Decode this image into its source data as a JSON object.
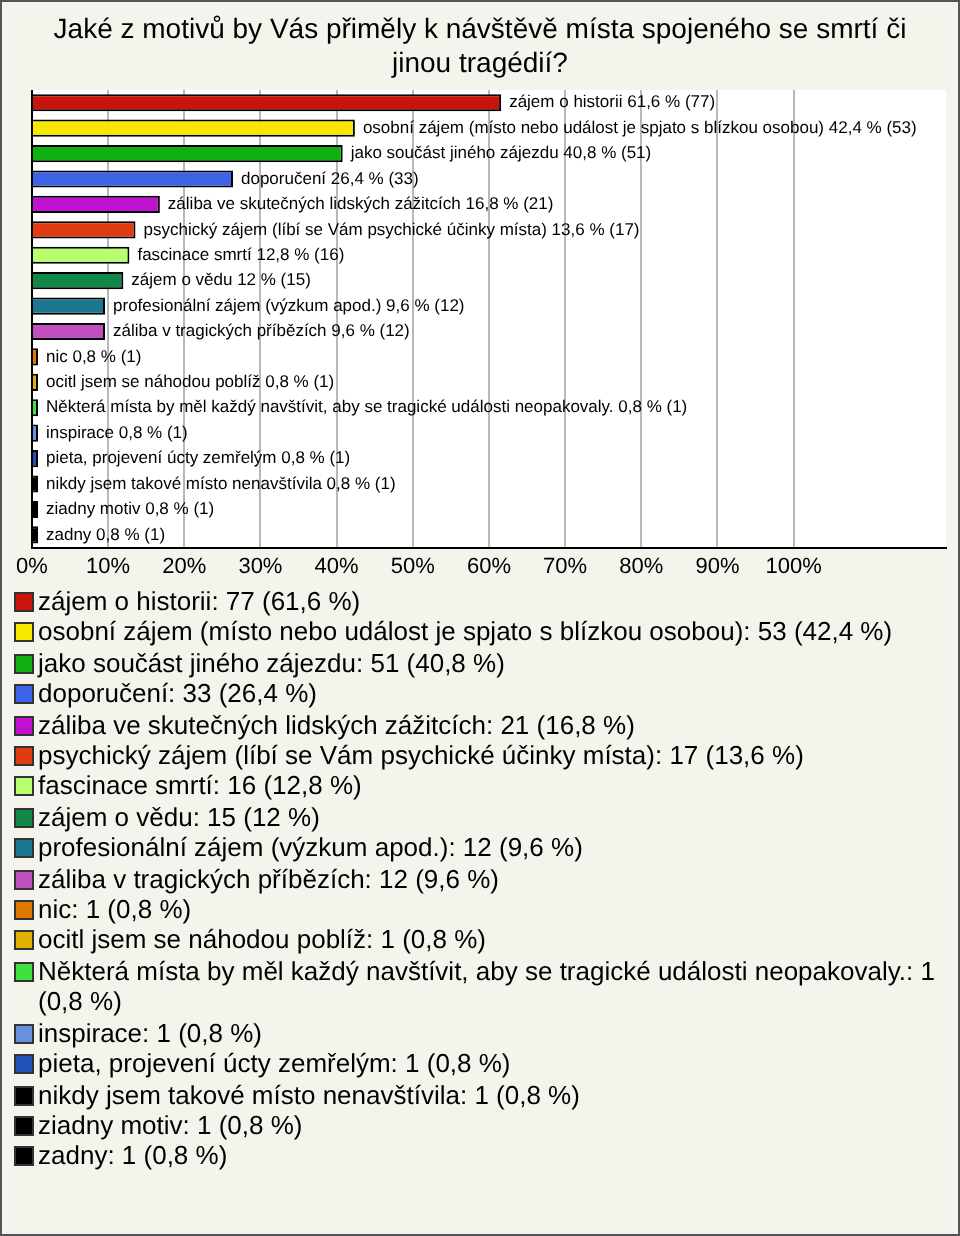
{
  "chart_data": {
    "type": "bar",
    "orientation": "horizontal",
    "title": "Jaké z motivů by Vás přiměly k návštěvě místa spojeného se smrtí či jinou tragédií?",
    "categories": [
      "zájem o historii",
      "osobní zájem (místo nebo událost je spjato s blízkou osobou)",
      "jako součást jiného zájezdu",
      "doporučení",
      "záliba ve skutečných lidských zážitcích",
      "psychický zájem (líbí se Vám psychické účinky místa)",
      "fascinace smrtí",
      "zájem o vědu",
      "profesionální zájem (výzkum apod.)",
      "záliba v tragických příbězích",
      "nic",
      "ocitl jsem se náhodou poblíž",
      "Některá místa by měl každý navštívit, aby se tragické události neopakovaly.",
      "inspirace",
      "pieta, projevení úcty zemřelým",
      "nikdy jsem takové místo nenavštívila",
      "ziadny motiv",
      "zadny"
    ],
    "values": [
      61.6,
      42.4,
      40.8,
      26.4,
      16.8,
      13.6,
      12.8,
      12,
      9.6,
      9.6,
      0.8,
      0.8,
      0.8,
      0.8,
      0.8,
      0.8,
      0.8,
      0.8
    ],
    "value_labels": [
      "61,6 % (77)",
      "42,4 % (53)",
      "40,8 % (51)",
      "26,4 % (33)",
      "16,8 % (21)",
      "13,6 % (17)",
      "12,8 % (16)",
      "12 % (15)",
      "9,6 % (12)",
      "9,6 % (12)",
      "0,8 % (1)",
      "0,8 % (1)",
      "0,8 % (1)",
      "0,8 % (1)",
      "0,8 % (1)",
      "0,8 % (1)",
      "0,8 % (1)",
      "0,8 % (1)"
    ],
    "colors": [
      "#c8140c",
      "#f8e800",
      "#10b010",
      "#3c64e8",
      "#c010d0",
      "#e03c10",
      "#b8ff70",
      "#108848",
      "#1c7890",
      "#c050c0",
      "#e07800",
      "#e0b000",
      "#40e040",
      "#6890e0",
      "#2050b8",
      "#000000",
      "#000000",
      "#000000"
    ],
    "xlim": [
      0,
      120
    ],
    "xticks": [
      {
        "value": 0,
        "label": "0%"
      },
      {
        "value": 10,
        "label": "10%"
      },
      {
        "value": 20,
        "label": "20%"
      },
      {
        "value": 30,
        "label": "30%"
      },
      {
        "value": 40,
        "label": "40%"
      },
      {
        "value": 50,
        "label": "50%"
      },
      {
        "value": 60,
        "label": "60%"
      },
      {
        "value": 70,
        "label": "70%"
      },
      {
        "value": 80,
        "label": "80%"
      },
      {
        "value": 90,
        "label": "90%"
      },
      {
        "value": 100,
        "label": "100%"
      }
    ],
    "grid": "x",
    "tick_labels": "x",
    "annotations": [
      "zájem o historii: 77 (61,6 %)",
      "osobní zájem (místo nebo událost je spjato s blízkou osobou): 53 (42,4 %)",
      "jako součást jiného zájezdu: 51 (40,8 %)",
      "doporučení: 33 (26,4 %)",
      "záliba ve skutečných lidských zážitcích: 21 (16,8 %)",
      "psychický zájem (líbí se Vám psychické účinky místa): 17 (13,6 %)",
      "fascinace smrtí: 16 (12,8 %)",
      "zájem o vědu: 15 (12 %)",
      "profesionální zájem (výzkum apod.): 12 (9,6 %)",
      "záliba v tragických příbězích: 12 (9,6 %)",
      "nic: 1 (0,8 %)",
      "ocitl jsem se náhodou poblíž: 1 (0,8 %)",
      "Některá místa by měl každý navštívit, aby se tragické události neopakovaly.: 1 (0,8 %)",
      "inspirace: 1 (0,8 %)",
      "pieta, projevení úcty zemřelým: 1 (0,8 %)",
      "nikdy jsem takové místo nenavštívila: 1 (0,8 %)",
      "ziadny motiv: 1 (0,8 %)",
      "zadny: 1 (0,8 %)"
    ]
  }
}
